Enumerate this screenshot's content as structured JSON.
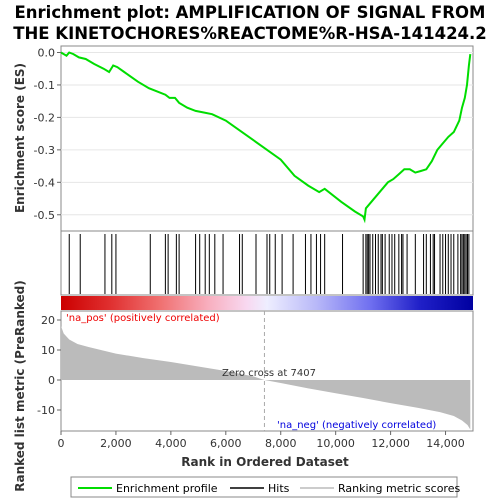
{
  "title_line1": "Enrichment plot: AMPLIFICATION OF SIGNAL FROM",
  "title_line2": "THE KINETOCHORES%REACTOME%R-HSA-141424.2",
  "colors": {
    "es_line": "#00dd00",
    "hit": "#000000",
    "metric_fill": "#bbbbbb",
    "pos_label": "#ee0000",
    "neg_label": "#0000dd",
    "zero_line": "#aaaaaa"
  },
  "legend": {
    "enrichment": "Enrichment profile",
    "hits": "Hits",
    "ranking": "Ranking metric scores"
  },
  "chart_data": [
    {
      "type": "line",
      "name": "enrichment-profile",
      "ylabel": "Enrichment score (ES)",
      "xlim": [
        0,
        15000
      ],
      "ylim": [
        -0.55,
        0.02
      ],
      "yticks": [
        0.0,
        -0.1,
        -0.2,
        -0.3,
        -0.4,
        -0.5
      ],
      "ytick_labels": [
        "0.0",
        "-0.1",
        "-0.2",
        "-0.3",
        "-0.4",
        "-0.5"
      ],
      "x": [
        0,
        200,
        300,
        450,
        650,
        900,
        1200,
        1550,
        1750,
        1900,
        2050,
        2300,
        2800,
        3200,
        3500,
        3800,
        3950,
        4150,
        4300,
        4600,
        4900,
        5200,
        5500,
        6000,
        7000,
        8000,
        8500,
        9000,
        9400,
        9600,
        10200,
        10700,
        11000,
        11050,
        11100,
        11300,
        11500,
        11700,
        11900,
        12100,
        12300,
        12500,
        12700,
        12900,
        13100,
        13300,
        13500,
        13700,
        13900,
        14100,
        14300,
        14500,
        14600,
        14700,
        14780,
        14850,
        14900
      ],
      "y": [
        0.0,
        -0.01,
        0.0,
        -0.005,
        -0.015,
        -0.02,
        -0.035,
        -0.05,
        -0.06,
        -0.04,
        -0.045,
        -0.06,
        -0.09,
        -0.11,
        -0.12,
        -0.13,
        -0.14,
        -0.14,
        -0.155,
        -0.17,
        -0.18,
        -0.185,
        -0.19,
        -0.21,
        -0.27,
        -0.33,
        -0.38,
        -0.41,
        -0.43,
        -0.42,
        -0.46,
        -0.49,
        -0.505,
        -0.515,
        -0.48,
        -0.46,
        -0.44,
        -0.42,
        -0.4,
        -0.39,
        -0.375,
        -0.36,
        -0.36,
        -0.37,
        -0.365,
        -0.36,
        -0.335,
        -0.3,
        -0.28,
        -0.26,
        -0.245,
        -0.21,
        -0.17,
        -0.14,
        -0.1,
        -0.04,
        -0.005
      ]
    },
    {
      "type": "hits",
      "name": "hits",
      "positions": [
        300,
        700,
        1600,
        1850,
        2000,
        3250,
        3800,
        3900,
        4200,
        4300,
        4900,
        5050,
        5250,
        5400,
        5600,
        5900,
        6500,
        6600,
        7100,
        7500,
        7600,
        7800,
        8050,
        8450,
        8900,
        9100,
        9300,
        9450,
        9600,
        10250,
        11000,
        11100,
        11150,
        11200,
        11250,
        11350,
        11450,
        11550,
        11650,
        11700,
        11800,
        11950,
        12050,
        12150,
        12300,
        12400,
        12450,
        12600,
        12900,
        13200,
        13300,
        13450,
        13550,
        13600,
        13800,
        13900,
        14000,
        14100,
        14200,
        14300,
        14450,
        14550,
        14600,
        14650,
        14700,
        14750,
        14800,
        14850
      ]
    },
    {
      "type": "area",
      "name": "ranking-metric",
      "xlabel": "Rank in Ordered Dataset",
      "ylabel": "Ranked list metric (PreRanked)",
      "xlim": [
        0,
        15000
      ],
      "ylim": [
        -17,
        23
      ],
      "yticks": [
        20,
        10,
        0,
        -10
      ],
      "ytick_labels": [
        "20",
        "10",
        "0",
        "-10"
      ],
      "xticks": [
        0,
        2000,
        4000,
        6000,
        8000,
        10000,
        12000,
        14000
      ],
      "xtick_labels": [
        "0",
        "2,000",
        "4,000",
        "6,000",
        "8,000",
        "10,000",
        "12,000",
        "14,000"
      ],
      "x": [
        0,
        100,
        300,
        600,
        1000,
        2000,
        3000,
        4000,
        5000,
        6000,
        7000,
        7407,
        8000,
        9000,
        10000,
        11000,
        12000,
        13000,
        13800,
        14300,
        14600,
        14800,
        14900
      ],
      "y": [
        18,
        15.5,
        13.5,
        12,
        11,
        8.8,
        7.3,
        6,
        4.5,
        3.0,
        1.2,
        0,
        -1,
        -2.8,
        -4.4,
        -6,
        -7.7,
        -9.3,
        -10.7,
        -12,
        -13.5,
        -15,
        -16.5
      ],
      "zero_cross_rank": 7407,
      "zero_cross_label": "Zero cross at 7407",
      "pos_label": "'na_pos' (positively correlated)",
      "neg_label": "'na_neg' (negatively correlated)"
    }
  ]
}
